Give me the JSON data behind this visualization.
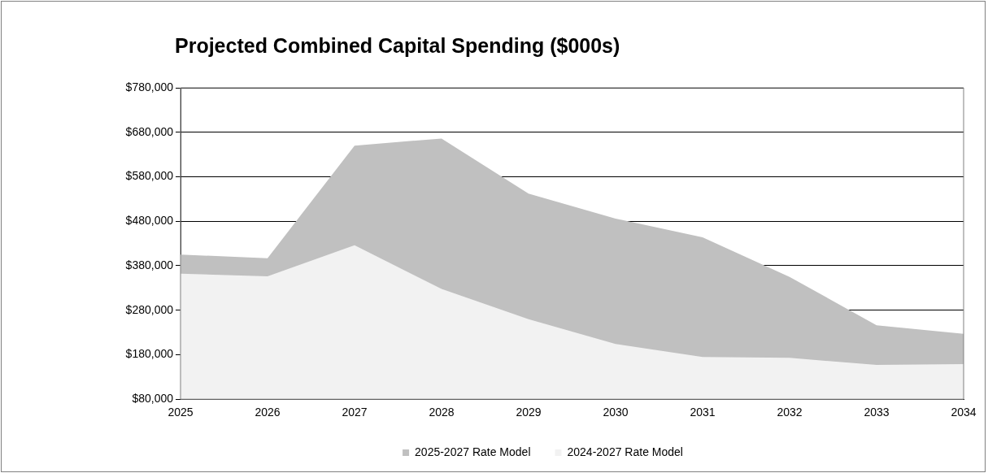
{
  "chart_data": {
    "type": "area",
    "title": "Projected Combined Capital Spending ($000s)",
    "categories": [
      "2025",
      "2026",
      "2027",
      "2028",
      "2029",
      "2030",
      "2031",
      "2032",
      "2033",
      "2034"
    ],
    "series": [
      {
        "name": "2025-2027 Rate Model",
        "color": "#c0c0c0",
        "values": [
          405000,
          397000,
          650000,
          666000,
          542000,
          486000,
          444000,
          355000,
          246000,
          227000
        ]
      },
      {
        "name": "2024-2027 Rate Model",
        "color": "#f2f2f2",
        "values": [
          362000,
          356000,
          426000,
          328000,
          260000,
          204000,
          175000,
          173000,
          157000,
          159000
        ]
      }
    ],
    "ylim": [
      80000,
      780000
    ],
    "yticks": [
      {
        "value": 80000,
        "label": "$80,000"
      },
      {
        "value": 180000,
        "label": "$180,000"
      },
      {
        "value": 280000,
        "label": "$280,000"
      },
      {
        "value": 380000,
        "label": "$380,000"
      },
      {
        "value": 480000,
        "label": "$480,000"
      },
      {
        "value": 580000,
        "label": "$580,000"
      },
      {
        "value": 680000,
        "label": "$680,000"
      },
      {
        "value": 780000,
        "label": "$780,000"
      }
    ],
    "grid": "y",
    "legend": "bottom"
  }
}
